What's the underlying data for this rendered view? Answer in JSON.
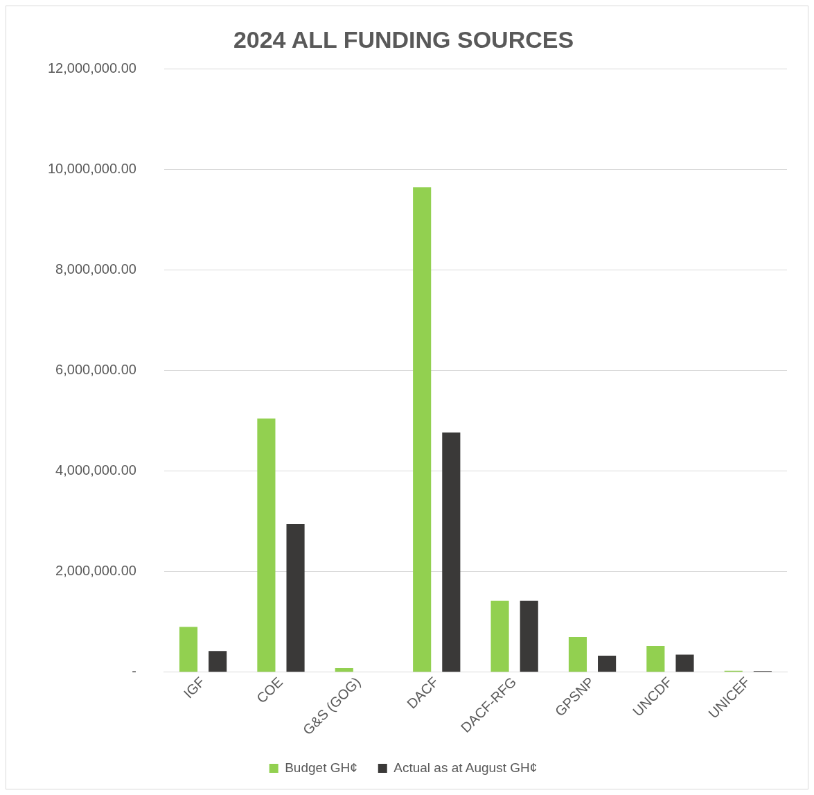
{
  "chart_data": {
    "type": "bar",
    "title": "2024 ALL FUNDING SOURCES",
    "categories": [
      "IGF",
      "COE",
      "G&S (GOG)",
      "DACF",
      "DACF-RFG",
      "GPSNP",
      "UNCDF",
      "UNICEF"
    ],
    "series": [
      {
        "name": "Budget GH¢",
        "color": "#92d050",
        "values": [
          900000,
          5050000,
          80000,
          9650000,
          1420000,
          700000,
          520000,
          30000
        ]
      },
      {
        "name": "Actual as at August GH¢",
        "color": "#3a3938",
        "values": [
          420000,
          2950000,
          0,
          4770000,
          1420000,
          330000,
          350000,
          20000
        ]
      }
    ],
    "ylim": [
      0,
      12000000
    ],
    "yticks": [
      {
        "value": 0,
        "label": "-"
      },
      {
        "value": 2000000,
        "label": "2,000,000.00"
      },
      {
        "value": 4000000,
        "label": "4,000,000.00"
      },
      {
        "value": 6000000,
        "label": "6,000,000.00"
      },
      {
        "value": 8000000,
        "label": "8,000,000.00"
      },
      {
        "value": 10000000,
        "label": "10,000,000.00"
      },
      {
        "value": 12000000,
        "label": "12,000,000.00"
      }
    ],
    "grid": "y",
    "legend": "bottom"
  }
}
